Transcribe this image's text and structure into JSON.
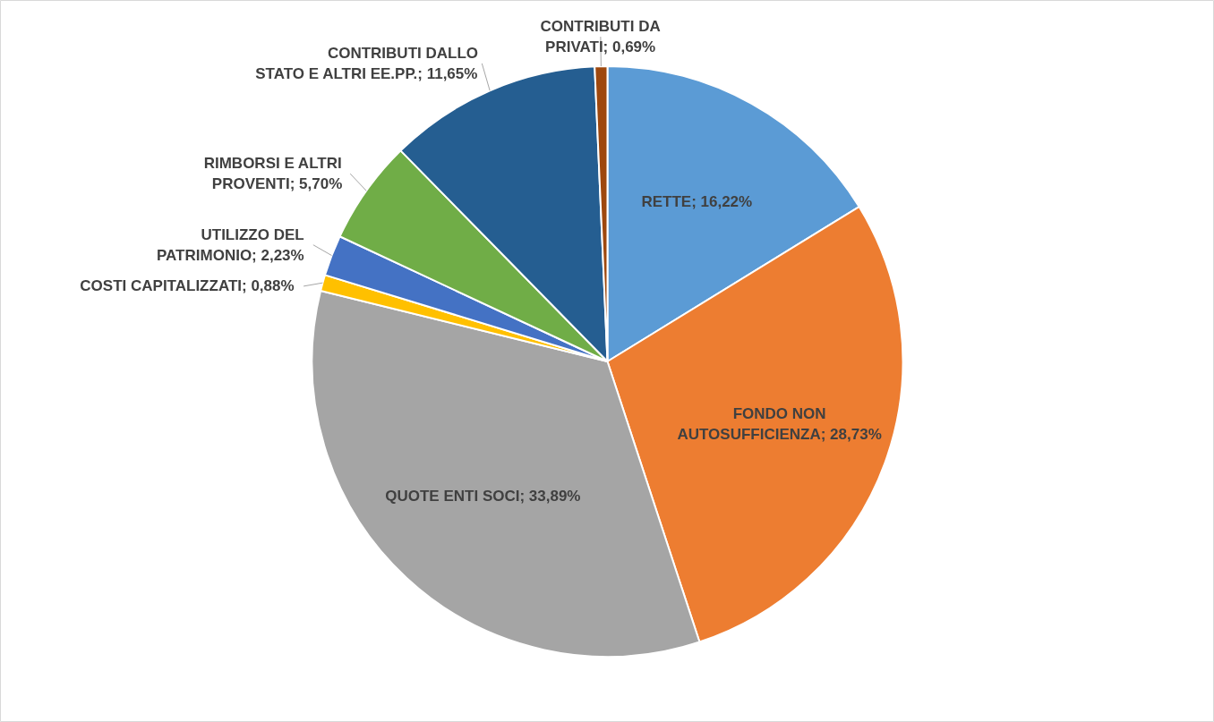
{
  "chart_data": {
    "type": "pie",
    "categories": [
      "RETTE",
      "FONDO NON AUTOSUFFICIENZA",
      "QUOTE ENTI SOCI",
      "COSTI CAPITALIZZATI",
      "UTILIZZO DEL PATRIMONIO",
      "RIMBORSI E ALTRI PROVENTI",
      "CONTRIBUTI DALLO STATO E ALTRI EE.PP.",
      "CONTRIBUTI DA PRIVATI"
    ],
    "values": [
      16.22,
      28.73,
      33.89,
      0.88,
      2.23,
      5.7,
      11.65,
      0.69
    ],
    "colors": [
      "#5b9bd5",
      "#ed7d31",
      "#a5a5a5",
      "#ffc000",
      "#4472c4",
      "#70ad47",
      "#255e91",
      "#9e480e"
    ],
    "value_labels": [
      "16,22%",
      "28,73%",
      "33,89%",
      "0,88%",
      "2,23%",
      "5,70%",
      "11,65%",
      "0,69%"
    ]
  }
}
